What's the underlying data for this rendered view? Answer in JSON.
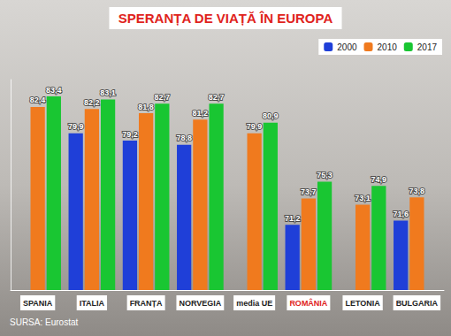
{
  "chart_data": {
    "type": "bar",
    "title": "SPERANȚA DE VIAȚĂ ÎN EUROPA",
    "annotations": [
      "SURSA: Eurostat"
    ],
    "categories": [
      "SPANIA",
      "ITALIA",
      "FRANȚA",
      "NORVEGIA",
      "media UE",
      "ROMÂNIA",
      "LETONIA",
      "BULGARIA"
    ],
    "series": [
      {
        "name": "2000",
        "color": "#1f3fd8",
        "values": [
          null,
          79.9,
          79.2,
          78.8,
          null,
          71.2,
          null,
          71.6
        ],
        "value_labels": [
          null,
          "79,9",
          "79,2",
          "78,8",
          null,
          "71,2",
          null,
          "71,6"
        ]
      },
      {
        "name": "2010",
        "color": "#f07a1e",
        "values": [
          82.4,
          82.2,
          81.8,
          81.2,
          79.9,
          73.7,
          73.1,
          73.8
        ],
        "value_labels": [
          "82,4",
          "82,2",
          "81,8",
          "81,2",
          "79,9",
          "73,7",
          "73,1",
          "73,8"
        ]
      },
      {
        "name": "2017",
        "color": "#19c632",
        "values": [
          83.4,
          83.1,
          82.7,
          82.7,
          80.9,
          75.3,
          74.9,
          null
        ],
        "value_labels": [
          "83,4",
          "83,1",
          "82,7",
          "82,7",
          "80,9",
          "75,3",
          "74,9",
          null
        ]
      }
    ],
    "ylim": [
      65,
      85
    ],
    "tick_labels": false,
    "grid": false,
    "data_labels": true,
    "legend": "top-right"
  }
}
